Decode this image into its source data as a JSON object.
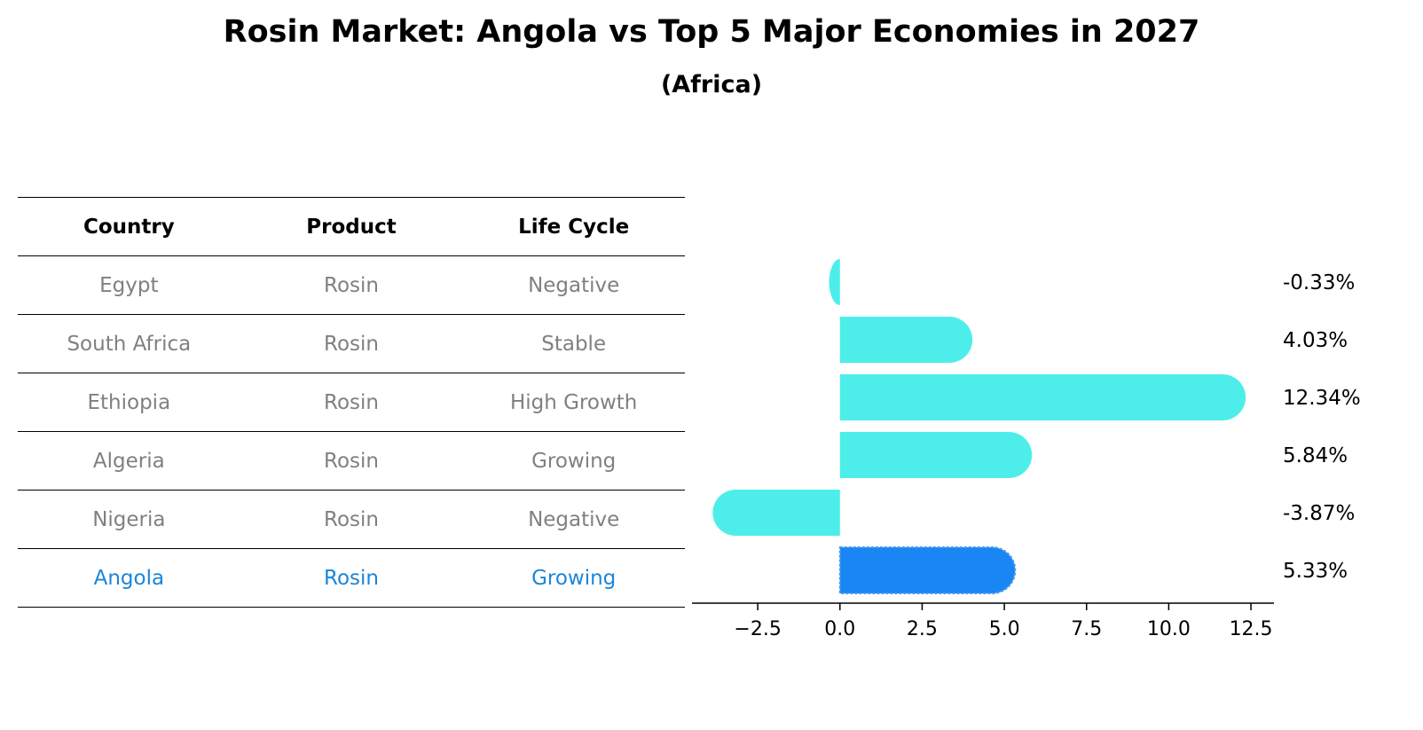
{
  "title": "Rosin Market: Angola vs Top 5 Major Economies in 2027",
  "subtitle": "(Africa)",
  "table": {
    "headers": [
      "Country",
      "Product",
      "Life Cycle"
    ],
    "rows": [
      [
        "Egypt",
        "Rosin",
        "Negative"
      ],
      [
        "South Africa",
        "Rosin",
        "Stable"
      ],
      [
        "Ethiopia",
        "Rosin",
        "High Growth"
      ],
      [
        "Algeria",
        "Rosin",
        "Growing"
      ],
      [
        "Nigeria",
        "Rosin",
        "Negative"
      ],
      [
        "Angola",
        "Rosin",
        "Growing"
      ]
    ]
  },
  "colors": {
    "bar": "#4deeea",
    "highlight": "#1a86f4",
    "highlight_text": "#1a86d9",
    "muted_text": "#808080"
  },
  "chart_data": {
    "type": "bar",
    "orientation": "horizontal",
    "categories": [
      "Egypt",
      "South Africa",
      "Ethiopia",
      "Algeria",
      "Nigeria",
      "Angola"
    ],
    "values": [
      -0.33,
      4.03,
      12.34,
      5.84,
      -3.87,
      5.33
    ],
    "labels": [
      "-0.33%",
      "4.03%",
      "12.34%",
      "5.84%",
      "-3.87%",
      "5.33%"
    ],
    "highlight": "Angola",
    "xlim": [
      -4.5,
      13.2
    ],
    "xticks": [
      -2.5,
      0.0,
      2.5,
      5.0,
      7.5,
      10.0,
      12.5
    ],
    "xtick_labels": [
      "−2.5",
      "0.0",
      "2.5",
      "5.0",
      "7.5",
      "10.0",
      "12.5"
    ]
  }
}
